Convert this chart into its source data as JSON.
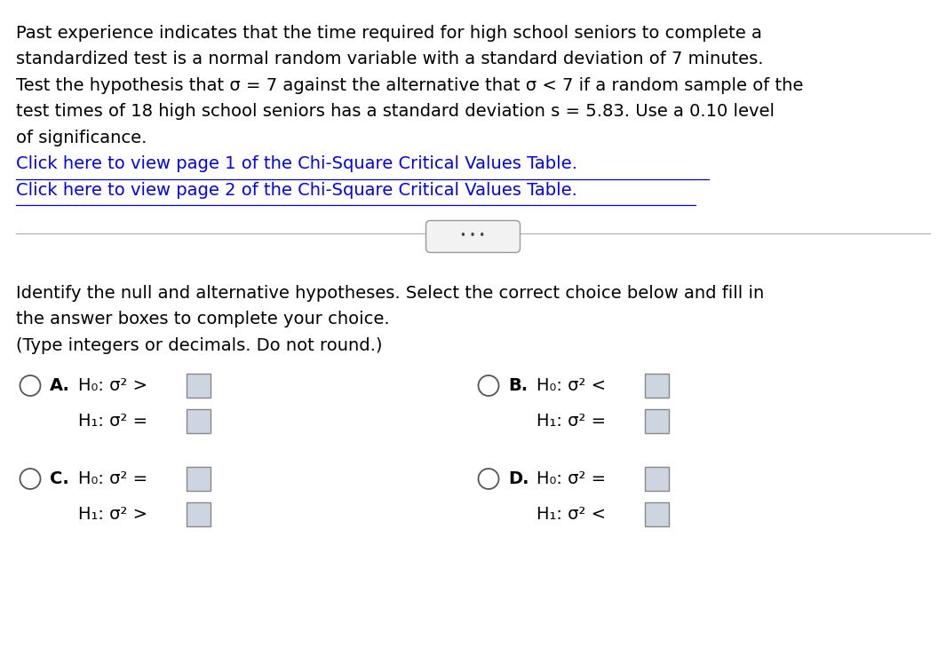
{
  "bg_color": "#ffffff",
  "text_color": "#000000",
  "link_color": "#0000ff",
  "paragraph1_lines": [
    "Past experience indicates that the time required for high school seniors to complete a",
    "standardized test is a normal random variable with a standard deviation of 7 minutes.",
    "Test the hypothesis that σ = 7 against the alternative that σ < 7 if a random sample of the",
    "test times of 18 high school seniors has a standard deviation s = 5.83. Use a 0.10 level",
    "of significance."
  ],
  "link1": "Click here to view page 1 of the Chi-Square Critical Values Table.",
  "link2": "Click here to view page 2 of the Chi-Square Critical Values Table.",
  "question_lines": [
    "Identify the null and alternative hypotheses. Select the correct choice below and fill in",
    "the answer boxes to complete your choice.",
    "(Type integers or decimals. Do not round.)"
  ],
  "choice_A_line1": "H₀: σ² >",
  "choice_A_line2": "H₁: σ² =",
  "choice_B_line1": "H₀: σ² <",
  "choice_B_line2": "H₁: σ² =",
  "choice_C_line1": "H₀: σ² =",
  "choice_C_line2": "H₁: σ² >",
  "choice_D_line1": "H₀: σ² =",
  "choice_D_line2": "H₁: σ² <",
  "font_size_main": 14.0,
  "font_size_choices": 14.0
}
